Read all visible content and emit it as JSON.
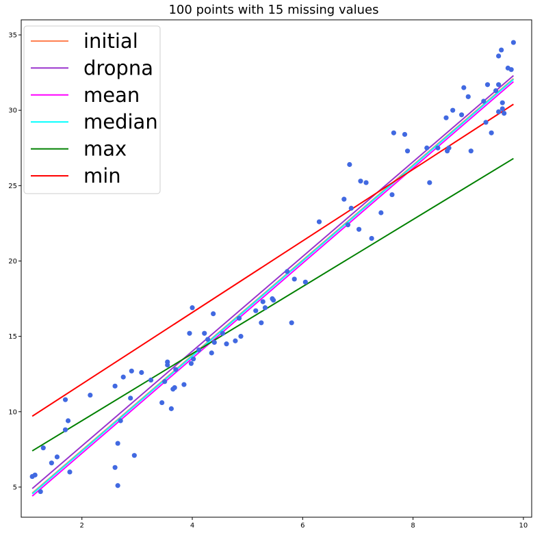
{
  "chart_data": {
    "type": "scatter",
    "title": "100 points with 15 missing values",
    "xlabel": "",
    "ylabel": "",
    "xlim": [
      0.9,
      10.15
    ],
    "ylim": [
      3.0,
      36.0
    ],
    "xticks": [
      2,
      4,
      6,
      8,
      10
    ],
    "yticks": [
      5,
      10,
      15,
      20,
      25,
      30,
      35
    ],
    "grid": false,
    "legend_position": "top-left",
    "points_color": "#4169e1",
    "points": [
      [
        1.1,
        5.7
      ],
      [
        1.15,
        5.8
      ],
      [
        1.25,
        4.7
      ],
      [
        1.3,
        7.6
      ],
      [
        1.45,
        6.6
      ],
      [
        1.55,
        7.0
      ],
      [
        1.7,
        10.8
      ],
      [
        1.7,
        8.8
      ],
      [
        1.75,
        9.4
      ],
      [
        1.78,
        6.0
      ],
      [
        2.15,
        11.1
      ],
      [
        2.6,
        11.7
      ],
      [
        2.6,
        6.3
      ],
      [
        2.65,
        7.9
      ],
      [
        2.65,
        5.1
      ],
      [
        2.7,
        9.4
      ],
      [
        2.75,
        12.3
      ],
      [
        2.88,
        10.9
      ],
      [
        2.9,
        12.7
      ],
      [
        2.95,
        7.1
      ],
      [
        3.08,
        12.6
      ],
      [
        3.25,
        12.1
      ],
      [
        3.45,
        10.6
      ],
      [
        3.5,
        12.0
      ],
      [
        3.55,
        13.3
      ],
      [
        3.55,
        13.1
      ],
      [
        3.62,
        10.2
      ],
      [
        3.65,
        11.5
      ],
      [
        3.68,
        11.6
      ],
      [
        3.7,
        12.8
      ],
      [
        3.85,
        11.8
      ],
      [
        3.95,
        15.2
      ],
      [
        3.98,
        13.2
      ],
      [
        4.0,
        16.9
      ],
      [
        4.02,
        13.5
      ],
      [
        4.12,
        14.1
      ],
      [
        4.22,
        15.2
      ],
      [
        4.28,
        14.8
      ],
      [
        4.35,
        13.9
      ],
      [
        4.38,
        16.5
      ],
      [
        4.4,
        14.6
      ],
      [
        4.55,
        15.2
      ],
      [
        4.62,
        14.5
      ],
      [
        4.78,
        14.7
      ],
      [
        4.85,
        16.2
      ],
      [
        4.88,
        15.0
      ],
      [
        5.15,
        16.7
      ],
      [
        5.25,
        15.9
      ],
      [
        5.28,
        17.3
      ],
      [
        5.32,
        16.9
      ],
      [
        5.45,
        17.5
      ],
      [
        5.47,
        17.4
      ],
      [
        5.72,
        19.3
      ],
      [
        5.8,
        15.9
      ],
      [
        5.85,
        18.8
      ],
      [
        6.05,
        18.6
      ],
      [
        6.3,
        22.6
      ],
      [
        6.75,
        24.1
      ],
      [
        6.82,
        22.4
      ],
      [
        6.85,
        26.4
      ],
      [
        6.88,
        23.5
      ],
      [
        7.02,
        22.1
      ],
      [
        7.05,
        25.3
      ],
      [
        7.15,
        25.2
      ],
      [
        7.25,
        21.5
      ],
      [
        7.42,
        23.2
      ],
      [
        7.62,
        24.4
      ],
      [
        7.65,
        28.5
      ],
      [
        7.85,
        28.4
      ],
      [
        7.9,
        27.3
      ],
      [
        8.25,
        27.5
      ],
      [
        8.3,
        25.2
      ],
      [
        8.45,
        27.5
      ],
      [
        8.6,
        29.5
      ],
      [
        8.62,
        27.3
      ],
      [
        8.65,
        27.5
      ],
      [
        8.72,
        30.0
      ],
      [
        8.88,
        29.7
      ],
      [
        8.92,
        31.5
      ],
      [
        9.0,
        30.9
      ],
      [
        9.05,
        27.3
      ],
      [
        9.28,
        30.6
      ],
      [
        9.32,
        29.2
      ],
      [
        9.35,
        31.7
      ],
      [
        9.42,
        28.5
      ],
      [
        9.5,
        31.3
      ],
      [
        9.55,
        33.6
      ],
      [
        9.55,
        31.7
      ],
      [
        9.55,
        29.9
      ],
      [
        9.6,
        34.0
      ],
      [
        9.62,
        30.5
      ],
      [
        9.62,
        30.1
      ],
      [
        9.65,
        29.8
      ],
      [
        9.72,
        32.8
      ],
      [
        9.78,
        32.7
      ],
      [
        9.82,
        34.5
      ]
    ],
    "series": [
      {
        "name": "initial",
        "color": "#ff7f50",
        "x": [
          1.1,
          9.82
        ],
        "y": [
          4.6,
          32.1
        ]
      },
      {
        "name": "dropna",
        "color": "#9932cc",
        "x": [
          1.1,
          9.82
        ],
        "y": [
          4.9,
          32.3
        ]
      },
      {
        "name": "mean",
        "color": "#ff00ff",
        "x": [
          1.1,
          9.82
        ],
        "y": [
          4.4,
          31.9
        ]
      },
      {
        "name": "median",
        "color": "#00ffff",
        "x": [
          1.1,
          9.82
        ],
        "y": [
          4.55,
          32.05
        ]
      },
      {
        "name": "max",
        "color": "#008000",
        "x": [
          1.1,
          9.82
        ],
        "y": [
          7.4,
          26.8
        ]
      },
      {
        "name": "min",
        "color": "#ff0000",
        "x": [
          1.1,
          9.82
        ],
        "y": [
          9.7,
          30.4
        ]
      }
    ]
  }
}
